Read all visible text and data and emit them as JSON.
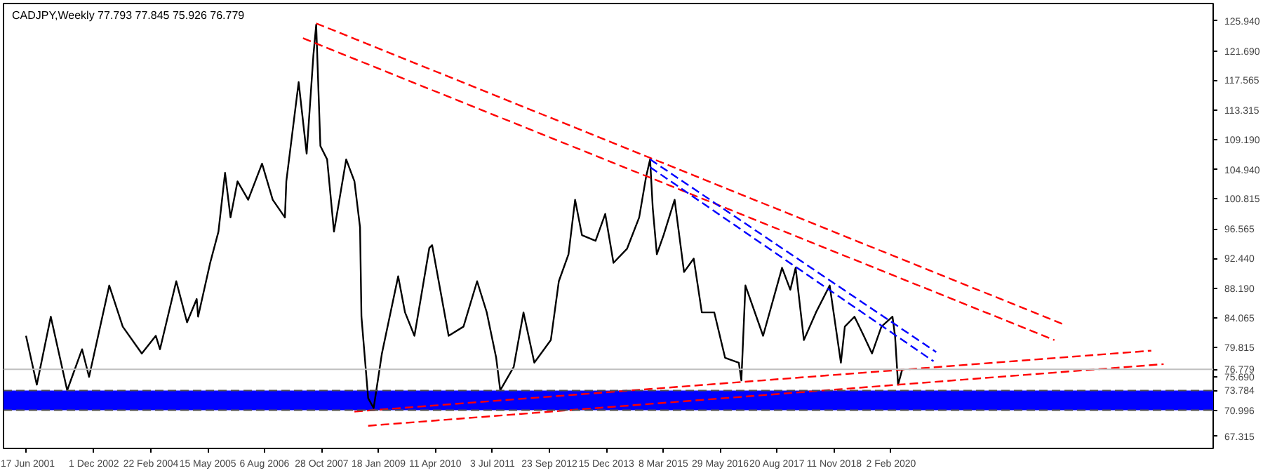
{
  "chart_data": {
    "type": "line",
    "title": "CADJPY,Weekly 77.793 77.845 75.926 76.779",
    "xlim": [
      "2000-12-20",
      "2027-01-10"
    ],
    "ylim": [
      65.6,
      128.4
    ],
    "xticks": [
      {
        "value": "2001-06-17",
        "label": "17 Jun 2001"
      },
      {
        "value": "2002-12-01",
        "label": "1 Dec 2002"
      },
      {
        "value": "2004-02-22",
        "label": "22 Feb 2004"
      },
      {
        "value": "2005-05-15",
        "label": "15 May 2005"
      },
      {
        "value": "2006-08-06",
        "label": "6 Aug 2006"
      },
      {
        "value": "2007-10-28",
        "label": "28 Oct 2007"
      },
      {
        "value": "2009-01-18",
        "label": "18 Jan 2009"
      },
      {
        "value": "2010-04-11",
        "label": "11 Apr 2010"
      },
      {
        "value": "2011-07-03",
        "label": "3 Jul 2011"
      },
      {
        "value": "2012-09-23",
        "label": "23 Sep 2012"
      },
      {
        "value": "2013-12-15",
        "label": "15 Dec 2013"
      },
      {
        "value": "2015-03-08",
        "label": "8 Mar 2015"
      },
      {
        "value": "2016-05-29",
        "label": "29 May 2016"
      },
      {
        "value": "2017-08-20",
        "label": "20 Aug 2017"
      },
      {
        "value": "2018-11-11",
        "label": "11 Nov 2018"
      },
      {
        "value": "2020-02-02",
        "label": "2 Feb 2020"
      }
    ],
    "yticks": [
      {
        "value": 125.94,
        "label": "125.940"
      },
      {
        "value": 121.69,
        "label": "121.690"
      },
      {
        "value": 117.565,
        "label": "117.565"
      },
      {
        "value": 113.315,
        "label": "113.315"
      },
      {
        "value": 109.19,
        "label": "109.190"
      },
      {
        "value": 104.94,
        "label": "104.940"
      },
      {
        "value": 100.815,
        "label": "100.815"
      },
      {
        "value": 96.565,
        "label": "96.565"
      },
      {
        "value": 92.44,
        "label": "92.440"
      },
      {
        "value": 88.19,
        "label": "88.190"
      },
      {
        "value": 84.065,
        "label": "84.065"
      },
      {
        "value": 79.815,
        "label": "79.815"
      },
      {
        "value": 75.69,
        "label": "75.690"
      },
      {
        "value": 67.315,
        "label": "67.315"
      }
    ],
    "grid": false,
    "ref_lines": [
      {
        "axis": "y",
        "value": 76.779,
        "label": "76.779",
        "color": "#c0c0c0",
        "line_style": "solid"
      },
      {
        "axis": "y",
        "value": 73.784,
        "label": "73.784",
        "color": "#505050",
        "line_style": "dashed"
      },
      {
        "axis": "y",
        "value": 70.996,
        "label": "70.996",
        "color": "#505050",
        "line_style": "dashed"
      }
    ],
    "bands": [
      {
        "axis": "y",
        "from": 70.996,
        "to": 73.784,
        "color": "#0000ff"
      }
    ],
    "series": [
      {
        "color": "#000000",
        "line_style": "solid",
        "x": [
          "2001-06-15",
          "2001-09-08",
          "2001-12-27",
          "2002-05-05",
          "2002-08-30",
          "2002-10-24",
          "2003-04-01",
          "2003-07-16",
          "2003-12-13",
          "2004-04-01",
          "2004-05-04",
          "2004-09-09",
          "2004-12-03",
          "2005-02-17",
          "2005-02-28",
          "2005-06-03",
          "2005-08-07",
          "2005-09-28",
          "2005-11-10",
          "2006-01-04",
          "2006-03-29",
          "2006-07-16",
          "2006-10-08",
          "2007-01-12",
          "2007-01-23",
          "2007-04-30",
          "2007-07-02",
          "2007-08-24",
          "2007-09-15",
          "2007-10-18",
          "2007-12-10",
          "2008-02-02",
          "2008-05-08",
          "2008-07-12",
          "2008-08-25",
          "2008-09-05",
          "2008-10-28",
          "2008-12-10",
          "2009-02-13",
          "2009-06-21",
          "2009-08-14",
          "2009-10-27",
          "2009-12-20",
          "2010-02-21",
          "2010-03-15",
          "2010-07-23",
          "2010-11-17",
          "2011-03-04",
          "2011-05-19",
          "2011-08-01",
          "2011-09-02",
          "2011-12-17",
          "2012-03-03",
          "2012-05-27",
          "2012-10-04",
          "2012-12-06",
          "2013-02-20",
          "2013-04-13",
          "2013-06-06",
          "2013-09-21",
          "2013-12-06",
          "2014-02-09",
          "2014-05-27",
          "2014-08-30",
          "2014-10-23",
          "2014-11-24",
          "2014-12-15",
          "2015-01-16",
          "2015-03-10",
          "2015-06-05",
          "2015-08-18",
          "2015-11-02",
          "2016-01-05",
          "2016-04-12",
          "2016-07-06",
          "2016-10-22",
          "2016-11-11",
          "2016-12-13",
          "2017-05-01",
          "2017-09-27",
          "2017-12-01",
          "2018-01-12",
          "2018-03-18",
          "2018-06-21",
          "2018-10-07",
          "2019-01-03",
          "2019-02-03",
          "2019-04-20",
          "2019-07-02",
          "2019-09-05",
          "2019-11-18",
          "2020-02-13",
          "2020-03-04",
          "2020-03-28",
          "2020-04-30"
        ],
        "values": [
          81.5,
          74.6,
          84.2,
          73.8,
          79.6,
          75.7,
          88.6,
          82.8,
          79.0,
          81.5,
          79.6,
          89.2,
          83.4,
          86.7,
          84.2,
          91.8,
          96.2,
          104.5,
          98.2,
          103.3,
          100.7,
          105.8,
          100.7,
          98.2,
          103.3,
          117.3,
          107.2,
          121.1,
          125.4,
          108.3,
          106.4,
          96.2,
          106.4,
          103.3,
          96.8,
          84.2,
          72.7,
          71.3,
          79.0,
          89.9,
          84.8,
          81.5,
          87.2,
          93.9,
          94.3,
          81.5,
          82.8,
          89.2,
          84.8,
          78.4,
          73.8,
          77.1,
          84.8,
          77.7,
          80.9,
          89.2,
          93.0,
          100.7,
          95.7,
          94.9,
          98.7,
          91.8,
          93.8,
          98.2,
          103.9,
          106.4,
          99.5,
          93.0,
          95.7,
          100.7,
          90.5,
          92.4,
          84.8,
          84.8,
          78.4,
          77.7,
          75.2,
          88.6,
          81.5,
          91.1,
          88.0,
          91.1,
          80.9,
          84.8,
          88.6,
          77.7,
          82.8,
          84.2,
          81.5,
          79.0,
          82.8,
          84.2,
          81.5,
          74.6,
          76.779
        ]
      },
      {
        "type": "line",
        "color": "#ff0000",
        "line_style": "dashed",
        "x": [
          "2007-09-15",
          "2023-11-06"
        ],
        "values": [
          125.6,
          83.0
        ]
      },
      {
        "type": "line",
        "color": "#ff0000",
        "line_style": "dashed",
        "x": [
          "2007-06-03",
          "2023-08-10"
        ],
        "values": [
          123.5,
          80.9
        ]
      },
      {
        "type": "line",
        "color": "#0000ff",
        "line_style": "dashed",
        "x": [
          "2014-11-24",
          "2021-01-22"
        ],
        "values": [
          106.4,
          79.2
        ]
      },
      {
        "type": "line",
        "color": "#0000ff",
        "line_style": "dashed",
        "x": [
          "2014-11-24",
          "2021-01-01"
        ],
        "values": [
          105.3,
          77.9
        ]
      },
      {
        "type": "line",
        "color": "#ff0000",
        "line_style": "dashed",
        "x": [
          "2008-07-12",
          "2025-09-10"
        ],
        "values": [
          70.8,
          79.4
        ]
      },
      {
        "type": "line",
        "color": "#ff0000",
        "line_style": "dashed",
        "x": [
          "2008-10-28",
          "2025-12-16"
        ],
        "values": [
          68.8,
          77.5
        ]
      }
    ]
  }
}
